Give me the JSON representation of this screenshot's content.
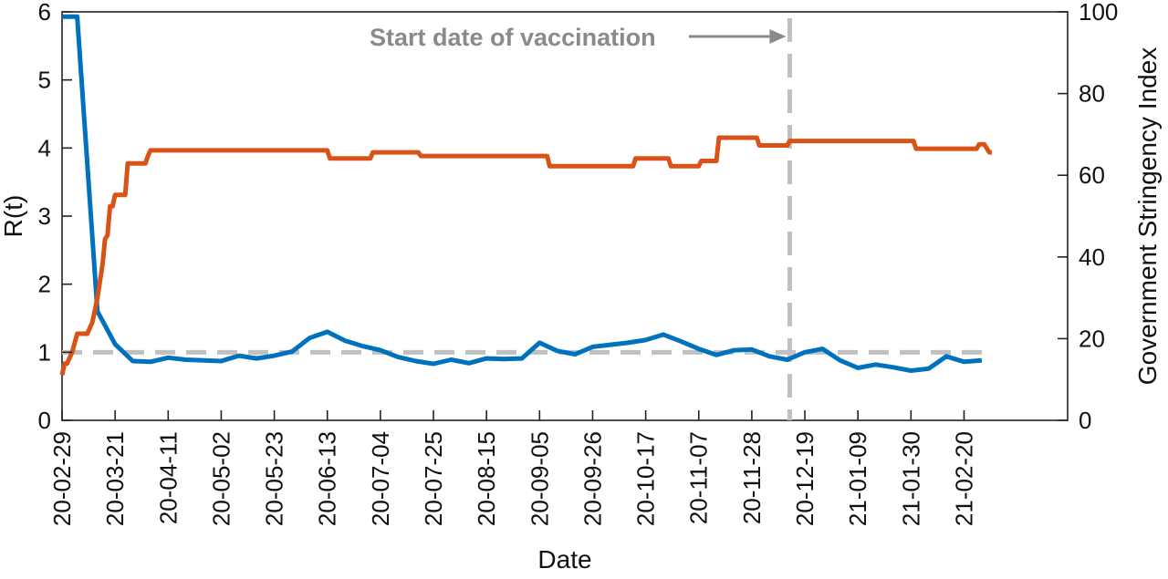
{
  "chart_data": {
    "type": "line",
    "xlabel": "Date",
    "ylabel_left": "R(t)",
    "ylabel_right": "Government Stringency Index",
    "ylim_left": [
      0,
      6
    ],
    "ylim_right": [
      0,
      100
    ],
    "yticks_left": [
      "0",
      "1",
      "2",
      "3",
      "4",
      "5",
      "6"
    ],
    "yticks_right": [
      "0",
      "20",
      "40",
      "60",
      "80",
      "100"
    ],
    "xlim": [
      "2020-02-29",
      "2021-04-02"
    ],
    "x_tick_labels": [
      "20-02-29",
      "20-03-21",
      "20-04-11",
      "20-05-02",
      "20-05-23",
      "20-06-13",
      "20-07-04",
      "20-07-25",
      "20-08-15",
      "20-09-05",
      "20-09-26",
      "20-10-17",
      "20-11-07",
      "20-11-28",
      "20-12-19",
      "21-01-09",
      "21-01-30",
      "21-02-20"
    ],
    "grid": false,
    "series": [
      {
        "axis": "left",
        "color": "#0072BD",
        "points": [
          [
            "2020-02-29",
            5.93
          ],
          [
            "2020-03-06",
            5.93
          ],
          [
            "2020-03-14",
            1.6
          ],
          [
            "2020-03-21",
            1.12
          ],
          [
            "2020-03-28",
            0.87
          ],
          [
            "2020-04-04",
            0.86
          ],
          [
            "2020-04-11",
            0.92
          ],
          [
            "2020-04-18",
            0.89
          ],
          [
            "2020-04-25",
            0.88
          ],
          [
            "2020-05-02",
            0.87
          ],
          [
            "2020-05-09",
            0.95
          ],
          [
            "2020-05-16",
            0.91
          ],
          [
            "2020-05-23",
            0.95
          ],
          [
            "2020-05-30",
            1.01
          ],
          [
            "2020-06-06",
            1.21
          ],
          [
            "2020-06-13",
            1.3
          ],
          [
            "2020-06-20",
            1.17
          ],
          [
            "2020-06-27",
            1.09
          ],
          [
            "2020-07-04",
            1.03
          ],
          [
            "2020-07-11",
            0.93
          ],
          [
            "2020-07-18",
            0.87
          ],
          [
            "2020-07-25",
            0.83
          ],
          [
            "2020-08-01",
            0.89
          ],
          [
            "2020-08-08",
            0.84
          ],
          [
            "2020-08-15",
            0.91
          ],
          [
            "2020-08-22",
            0.9
          ],
          [
            "2020-08-29",
            0.91
          ],
          [
            "2020-09-05",
            1.14
          ],
          [
            "2020-09-12",
            1.02
          ],
          [
            "2020-09-19",
            0.97
          ],
          [
            "2020-09-26",
            1.08
          ],
          [
            "2020-10-03",
            1.11
          ],
          [
            "2020-10-10",
            1.14
          ],
          [
            "2020-10-17",
            1.18
          ],
          [
            "2020-10-24",
            1.26
          ],
          [
            "2020-10-31",
            1.16
          ],
          [
            "2020-11-07",
            1.05
          ],
          [
            "2020-11-14",
            0.96
          ],
          [
            "2020-11-21",
            1.03
          ],
          [
            "2020-11-28",
            1.04
          ],
          [
            "2020-12-05",
            0.94
          ],
          [
            "2020-12-12",
            0.89
          ],
          [
            "2020-12-19",
            1.0
          ],
          [
            "2020-12-26",
            1.05
          ],
          [
            "2021-01-02",
            0.88
          ],
          [
            "2021-01-09",
            0.77
          ],
          [
            "2021-01-16",
            0.82
          ],
          [
            "2021-01-23",
            0.78
          ],
          [
            "2021-01-30",
            0.73
          ],
          [
            "2021-02-06",
            0.76
          ],
          [
            "2021-02-13",
            0.94
          ],
          [
            "2021-02-20",
            0.86
          ],
          [
            "2021-02-27",
            0.88
          ]
        ]
      },
      {
        "axis": "right",
        "color": "#D95319",
        "points": [
          [
            "2020-02-29",
            11.1
          ],
          [
            "2020-03-01",
            13.9
          ],
          [
            "2020-03-02",
            13.9
          ],
          [
            "2020-03-04",
            16.7
          ],
          [
            "2020-03-06",
            21.2
          ],
          [
            "2020-03-10",
            21.2
          ],
          [
            "2020-03-12",
            24.0
          ],
          [
            "2020-03-14",
            30.0
          ],
          [
            "2020-03-16",
            38.0
          ],
          [
            "2020-03-17",
            44.4
          ],
          [
            "2020-03-18",
            45.3
          ],
          [
            "2020-03-19",
            52.4
          ],
          [
            "2020-03-20",
            52.4
          ],
          [
            "2020-03-21",
            55.2
          ],
          [
            "2020-03-25",
            55.2
          ],
          [
            "2020-03-26",
            62.9
          ],
          [
            "2020-04-02",
            62.9
          ],
          [
            "2020-04-03",
            64.7
          ],
          [
            "2020-04-04",
            66.1
          ],
          [
            "2020-06-13",
            66.1
          ],
          [
            "2020-06-14",
            64.1
          ],
          [
            "2020-06-30",
            64.1
          ],
          [
            "2020-07-01",
            65.6
          ],
          [
            "2020-07-19",
            65.6
          ],
          [
            "2020-07-20",
            64.7
          ],
          [
            "2020-09-08",
            64.7
          ],
          [
            "2020-09-09",
            62.2
          ],
          [
            "2020-10-12",
            62.2
          ],
          [
            "2020-10-13",
            64.1
          ],
          [
            "2020-10-26",
            64.1
          ],
          [
            "2020-10-27",
            62.2
          ],
          [
            "2020-11-07",
            62.2
          ],
          [
            "2020-11-08",
            63.5
          ],
          [
            "2020-11-14",
            63.5
          ],
          [
            "2020-11-15",
            69.2
          ],
          [
            "2020-11-30",
            69.2
          ],
          [
            "2020-12-01",
            67.3
          ],
          [
            "2020-12-12",
            67.3
          ],
          [
            "2020-12-13",
            68.4
          ],
          [
            "2021-01-31",
            68.4
          ],
          [
            "2021-02-01",
            66.5
          ],
          [
            "2021-02-25",
            66.5
          ],
          [
            "2021-02-26",
            67.6
          ],
          [
            "2021-02-28",
            67.6
          ],
          [
            "2021-03-02",
            65.6
          ],
          [
            "2021-03-03",
            65.6
          ]
        ]
      }
    ],
    "reference_lines": [
      {
        "orientation": "horizontal",
        "axis": "left",
        "value": 1,
        "from": "2020-02-29",
        "to": "2021-03-01",
        "style": "dashed",
        "color": "#c0c0c0"
      },
      {
        "orientation": "vertical",
        "value": "2020-12-13",
        "style": "dashed",
        "color": "#c0c0c0"
      }
    ],
    "annotations": [
      {
        "text": "Start date of vaccination",
        "color": "#8a8a8a",
        "arrow_to": "2020-12-13"
      }
    ]
  }
}
